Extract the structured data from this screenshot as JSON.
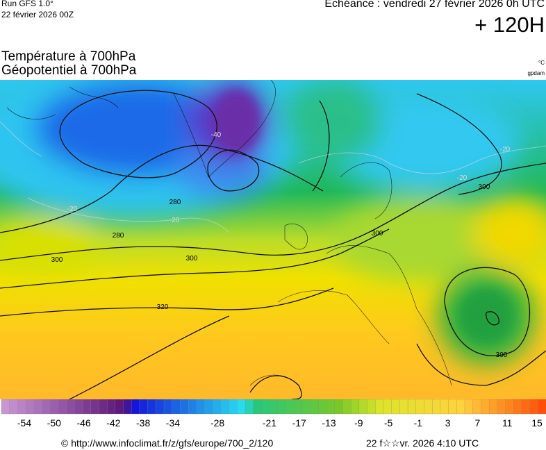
{
  "header": {
    "run": "Run GFS 1.0°",
    "run_date": "22 février 2026 00Z",
    "valid": "Echéance : vendredi 27 février 2026 0h UTC",
    "lead": "+ 120H"
  },
  "title": {
    "line1": "Température à 700hPa",
    "line2": "Géopotentiel à 700hPa",
    "unit_temp": "°C",
    "unit_geo": "gpdam"
  },
  "map": {
    "geopotential_labels": [
      "280",
      "280",
      "300",
      "300",
      "300",
      "300",
      "300",
      "320"
    ],
    "temperature_labels": [
      "-20",
      "-20",
      "-20",
      "-20",
      "-40"
    ]
  },
  "colorbar": {
    "labels": [
      -54,
      -50,
      -46,
      -42,
      -38,
      -34,
      -28,
      -21,
      -17,
      -13,
      -9,
      -5,
      -1,
      3,
      7,
      11,
      15
    ]
  },
  "footer": {
    "url": "© http://www.infoclimat.fr/z/gfs/europe/700_2/120",
    "timestamp": "22 f☆☆vr. 2026  4:10 UTC"
  }
}
